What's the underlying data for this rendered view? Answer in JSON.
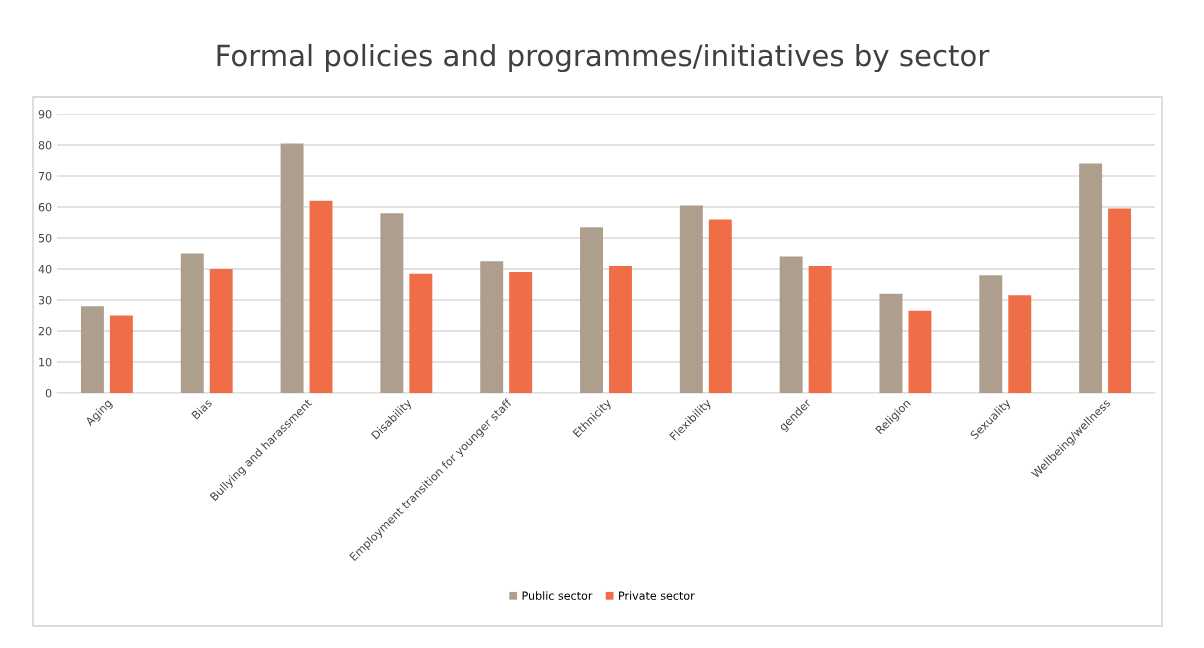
{
  "chart_data": {
    "type": "bar",
    "title": "Formal policies and programmes/initiatives by sector",
    "categories": [
      "Aging",
      "Bias",
      "Bullying and harassment",
      "Disability",
      "Employment transition for younger staff",
      "Ethnicity",
      "Flexibility",
      "gender",
      "Religion",
      "Sexuality",
      "Wellbeing/wellness"
    ],
    "series": [
      {
        "name": "Public sector",
        "color": "#ae9e8e",
        "values": [
          28,
          45,
          80.5,
          58,
          42.5,
          53.5,
          60.5,
          44,
          32,
          38,
          74
        ]
      },
      {
        "name": "Private sector",
        "color": "#f06e47",
        "values": [
          25,
          40,
          62,
          38.5,
          39,
          41,
          56,
          41,
          26.5,
          31.5,
          59.5
        ]
      }
    ],
    "ylim": [
      0,
      90
    ],
    "yticks": [
      0,
      10,
      20,
      30,
      40,
      50,
      60,
      70,
      80,
      90
    ],
    "grid": "y",
    "legend": "bottom"
  }
}
